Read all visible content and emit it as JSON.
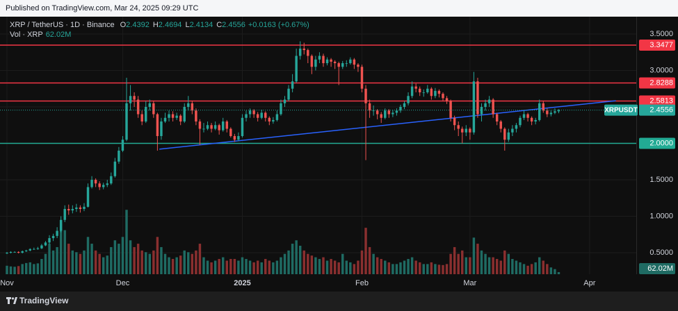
{
  "published": "Published on TradingView.com, Mar 24, 2025 09:29 UTC",
  "footer_brand": "TradingView",
  "chart_data": {
    "type": "candlestick",
    "symbol_title": "XRP / TetherUS · 1D · Binance",
    "ohlc_letters": [
      "O",
      "H",
      "L",
      "C"
    ],
    "change": "+0.0163",
    "change_pct": "(+0.67%)",
    "volume_title": "Vol · XRP",
    "volume_last_label": "62.02M",
    "symbol_label": "XRPUSDT",
    "up_color": "#26a69a",
    "down_color": "#ef5350",
    "volume_up_color": "#1f6b63",
    "volume_down_color": "#8a2f2f",
    "xlim": [
      -1.8,
      163.1
    ],
    "xticks": [
      {
        "value": 0,
        "label": "Nov"
      },
      {
        "value": 30,
        "label": "Dec"
      },
      {
        "value": 61,
        "label": "2025"
      },
      {
        "value": 92,
        "label": "Feb"
      },
      {
        "value": 120,
        "label": "Mar"
      },
      {
        "value": 151,
        "label": "Apr"
      }
    ],
    "ylim": [
      0.205,
      3.738
    ],
    "yticks": [
      {
        "value": 0.5,
        "label": "0.5000"
      },
      {
        "value": 1,
        "label": "1.0000"
      },
      {
        "value": 1.5,
        "label": "1.5000"
      },
      {
        "value": 2,
        "label": "2.0000"
      },
      {
        "value": 2.5,
        "label": "2.5000"
      },
      {
        "value": 3,
        "label": "3.0000"
      },
      {
        "value": 3.5,
        "label": "3.5000"
      }
    ],
    "volume_ylim": [
      0,
      7600
    ],
    "grid": true,
    "levels": [
      {
        "value": 3.3477,
        "color": "#f23645"
      },
      {
        "value": 2.8288,
        "color": "#f23645"
      },
      {
        "value": 2.5813,
        "color": "#f23645"
      },
      {
        "value": 2,
        "label": "2.0000",
        "color": "#22ab94"
      }
    ],
    "trendline": {
      "x": [
        39.5,
        157.8
      ],
      "y": [
        1.92,
        2.585
      ],
      "color": "#2962ff"
    },
    "candles": [
      [
        0.49,
        0.51,
        0.48,
        0.5
      ],
      [
        0.5,
        0.52,
        0.49,
        0.51
      ],
      [
        0.51,
        0.52,
        0.5,
        0.51
      ],
      [
        0.51,
        0.52,
        0.49,
        0.5
      ],
      [
        0.5,
        0.53,
        0.49,
        0.52
      ],
      [
        0.52,
        0.54,
        0.51,
        0.53
      ],
      [
        0.53,
        0.56,
        0.52,
        0.55
      ],
      [
        0.55,
        0.57,
        0.54,
        0.55
      ],
      [
        0.55,
        0.58,
        0.54,
        0.56
      ],
      [
        0.56,
        0.62,
        0.55,
        0.6
      ],
      [
        0.6,
        0.66,
        0.59,
        0.64
      ],
      [
        0.64,
        0.74,
        0.62,
        0.7
      ],
      [
        0.7,
        0.76,
        0.66,
        0.73
      ],
      [
        0.73,
        0.85,
        0.7,
        0.8
      ],
      [
        0.8,
        1.0,
        0.78,
        0.95
      ],
      [
        0.95,
        1.15,
        0.92,
        1.1
      ],
      [
        1.1,
        1.16,
        1.02,
        1.08
      ],
      [
        1.08,
        1.15,
        1.04,
        1.1
      ],
      [
        1.1,
        1.17,
        1.06,
        1.12
      ],
      [
        1.12,
        1.15,
        1.05,
        1.1
      ],
      [
        1.1,
        1.18,
        1.07,
        1.13
      ],
      [
        1.13,
        1.45,
        1.12,
        1.4
      ],
      [
        1.4,
        1.55,
        1.38,
        1.5
      ],
      [
        1.5,
        1.52,
        1.4,
        1.45
      ],
      [
        1.45,
        1.48,
        1.36,
        1.4
      ],
      [
        1.4,
        1.46,
        1.37,
        1.43
      ],
      [
        1.43,
        1.5,
        1.4,
        1.45
      ],
      [
        1.45,
        1.6,
        1.43,
        1.55
      ],
      [
        1.55,
        1.8,
        1.53,
        1.75
      ],
      [
        1.75,
        1.95,
        1.72,
        1.9
      ],
      [
        1.9,
        2.1,
        1.88,
        2.05
      ],
      [
        2.05,
        2.9,
        2.03,
        2.55
      ],
      [
        2.55,
        2.8,
        2.45,
        2.65
      ],
      [
        2.65,
        2.7,
        2.5,
        2.6
      ],
      [
        2.6,
        2.65,
        2.35,
        2.4
      ],
      [
        2.4,
        2.45,
        2.25,
        2.3
      ],
      [
        2.3,
        2.58,
        2.28,
        2.5
      ],
      [
        2.5,
        2.6,
        2.45,
        2.55
      ],
      [
        2.55,
        2.58,
        2.35,
        2.4
      ],
      [
        2.4,
        2.42,
        1.9,
        2.1
      ],
      [
        2.1,
        2.35,
        2.05,
        2.3
      ],
      [
        2.3,
        2.42,
        2.28,
        2.35
      ],
      [
        2.35,
        2.45,
        2.3,
        2.4
      ],
      [
        2.4,
        2.44,
        2.3,
        2.35
      ],
      [
        2.35,
        2.42,
        2.32,
        2.38
      ],
      [
        2.38,
        2.4,
        2.25,
        2.3
      ],
      [
        2.3,
        2.55,
        2.28,
        2.5
      ],
      [
        2.5,
        2.65,
        2.45,
        2.55
      ],
      [
        2.55,
        2.58,
        2.4,
        2.45
      ],
      [
        2.45,
        2.48,
        2.25,
        2.3
      ],
      [
        2.3,
        2.33,
        1.98,
        2.2
      ],
      [
        2.2,
        2.28,
        2.15,
        2.2
      ],
      [
        2.2,
        2.3,
        2.18,
        2.25
      ],
      [
        2.25,
        2.28,
        2.15,
        2.2
      ],
      [
        2.2,
        2.3,
        2.18,
        2.25
      ],
      [
        2.25,
        2.27,
        2.12,
        2.18
      ],
      [
        2.18,
        2.35,
        2.16,
        2.3
      ],
      [
        2.3,
        2.32,
        2.15,
        2.2
      ],
      [
        2.2,
        2.22,
        2.08,
        2.1
      ],
      [
        2.1,
        2.13,
        2.02,
        2.05
      ],
      [
        2.05,
        2.15,
        2.03,
        2.1
      ],
      [
        2.1,
        2.4,
        2.08,
        2.35
      ],
      [
        2.35,
        2.45,
        2.3,
        2.4
      ],
      [
        2.4,
        2.48,
        2.35,
        2.45
      ],
      [
        2.45,
        2.47,
        2.35,
        2.4
      ],
      [
        2.4,
        2.43,
        2.3,
        2.35
      ],
      [
        2.35,
        2.46,
        2.33,
        2.42
      ],
      [
        2.42,
        2.44,
        2.3,
        2.35
      ],
      [
        2.35,
        2.37,
        2.25,
        2.3
      ],
      [
        2.3,
        2.36,
        2.27,
        2.32
      ],
      [
        2.32,
        2.45,
        2.3,
        2.4
      ],
      [
        2.4,
        2.6,
        2.38,
        2.55
      ],
      [
        2.55,
        2.65,
        2.5,
        2.6
      ],
      [
        2.6,
        2.8,
        2.58,
        2.75
      ],
      [
        2.75,
        2.95,
        2.7,
        2.85
      ],
      [
        2.85,
        3.3,
        2.83,
        3.2
      ],
      [
        3.2,
        3.4,
        3.15,
        3.3
      ],
      [
        3.3,
        3.38,
        3.22,
        3.28
      ],
      [
        3.28,
        3.3,
        3.1,
        3.2
      ],
      [
        3.2,
        3.22,
        2.95,
        3.05
      ],
      [
        3.05,
        3.2,
        3.0,
        3.15
      ],
      [
        3.15,
        3.25,
        3.1,
        3.2
      ],
      [
        3.2,
        3.23,
        3.05,
        3.1
      ],
      [
        3.1,
        3.18,
        3.07,
        3.15
      ],
      [
        3.15,
        3.17,
        3.05,
        3.12
      ],
      [
        3.12,
        3.14,
        3.02,
        3.1
      ],
      [
        3.1,
        3.12,
        2.8,
        3.05
      ],
      [
        3.05,
        3.13,
        3.02,
        3.1
      ],
      [
        3.1,
        3.14,
        3.05,
        3.1
      ],
      [
        3.1,
        3.18,
        3.08,
        3.15
      ],
      [
        3.15,
        3.17,
        3.02,
        3.08
      ],
      [
        3.08,
        3.1,
        2.98,
        3.05
      ],
      [
        3.05,
        3.08,
        2.7,
        2.75
      ],
      [
        2.75,
        2.8,
        1.77,
        2.55
      ],
      [
        2.55,
        2.6,
        2.35,
        2.45
      ],
      [
        2.45,
        2.52,
        2.38,
        2.45
      ],
      [
        2.45,
        2.47,
        2.33,
        2.4
      ],
      [
        2.4,
        2.43,
        2.28,
        2.35
      ],
      [
        2.35,
        2.48,
        2.33,
        2.45
      ],
      [
        2.45,
        2.47,
        2.35,
        2.4
      ],
      [
        2.4,
        2.46,
        2.36,
        2.42
      ],
      [
        2.42,
        2.48,
        2.38,
        2.45
      ],
      [
        2.45,
        2.53,
        2.42,
        2.5
      ],
      [
        2.5,
        2.58,
        2.47,
        2.55
      ],
      [
        2.55,
        2.7,
        2.52,
        2.65
      ],
      [
        2.65,
        2.85,
        2.62,
        2.78
      ],
      [
        2.78,
        2.82,
        2.7,
        2.75
      ],
      [
        2.75,
        2.78,
        2.65,
        2.7
      ],
      [
        2.7,
        2.74,
        2.64,
        2.7
      ],
      [
        2.7,
        2.8,
        2.68,
        2.75
      ],
      [
        2.75,
        2.77,
        2.6,
        2.65
      ],
      [
        2.65,
        2.76,
        2.62,
        2.72
      ],
      [
        2.72,
        2.74,
        2.63,
        2.68
      ],
      [
        2.68,
        2.7,
        2.58,
        2.62
      ],
      [
        2.62,
        2.65,
        2.54,
        2.58
      ],
      [
        2.58,
        2.6,
        2.3,
        2.35
      ],
      [
        2.35,
        2.38,
        2.18,
        2.25
      ],
      [
        2.25,
        2.3,
        2.1,
        2.2
      ],
      [
        2.2,
        2.23,
        2.0,
        2.15
      ],
      [
        2.15,
        2.25,
        2.1,
        2.2
      ],
      [
        2.2,
        2.22,
        2.05,
        2.15
      ],
      [
        2.15,
        2.98,
        2.12,
        2.85
      ],
      [
        2.85,
        2.9,
        2.35,
        2.4
      ],
      [
        2.4,
        2.55,
        2.3,
        2.5
      ],
      [
        2.5,
        2.6,
        2.45,
        2.55
      ],
      [
        2.55,
        2.65,
        2.5,
        2.6
      ],
      [
        2.6,
        2.62,
        2.35,
        2.4
      ],
      [
        2.4,
        2.42,
        2.25,
        2.3
      ],
      [
        2.3,
        2.32,
        2.15,
        2.2
      ],
      [
        2.2,
        2.22,
        1.9,
        2.05
      ],
      [
        2.05,
        2.2,
        2.02,
        2.15
      ],
      [
        2.15,
        2.25,
        2.1,
        2.2
      ],
      [
        2.2,
        2.28,
        2.15,
        2.25
      ],
      [
        2.25,
        2.38,
        2.22,
        2.35
      ],
      [
        2.35,
        2.45,
        2.32,
        2.4
      ],
      [
        2.4,
        2.42,
        2.3,
        2.35
      ],
      [
        2.35,
        2.37,
        2.25,
        2.3
      ],
      [
        2.3,
        2.35,
        2.26,
        2.32
      ],
      [
        2.32,
        2.6,
        2.3,
        2.55
      ],
      [
        2.55,
        2.58,
        2.42,
        2.45
      ],
      [
        2.45,
        2.48,
        2.36,
        2.4
      ],
      [
        2.4,
        2.45,
        2.37,
        2.42
      ],
      [
        2.42,
        2.48,
        2.4,
        2.44
      ],
      [
        2.4392,
        2.4694,
        2.4134,
        2.4556
      ]
    ],
    "volumes": [
      250,
      230,
      220,
      240,
      300,
      330,
      350,
      300,
      320,
      450,
      600,
      900,
      700,
      800,
      1500,
      1300,
      900,
      700,
      650,
      600,
      700,
      1100,
      900,
      700,
      600,
      500,
      550,
      800,
      1000,
      900,
      1100,
      1900,
      1000,
      800,
      900,
      700,
      650,
      600,
      700,
      1100,
      800,
      600,
      500,
      450,
      500,
      550,
      700,
      650,
      600,
      700,
      900,
      500,
      400,
      350,
      400,
      450,
      500,
      400,
      450,
      450,
      400,
      500,
      450,
      400,
      350,
      400,
      350,
      450,
      400,
      350,
      400,
      500,
      600,
      700,
      900,
      1000,
      840,
      700,
      600,
      550,
      500,
      450,
      500,
      400,
      450,
      400,
      350,
      600,
      400,
      350,
      300,
      400,
      700,
      1370,
      800,
      600,
      500,
      450,
      400,
      350,
      300,
      300,
      350,
      400,
      450,
      500,
      400,
      350,
      300,
      300,
      350,
      300,
      280,
      270,
      300,
      600,
      800,
      600,
      700,
      500,
      500,
      1080,
      900,
      700,
      600,
      500,
      500,
      450,
      400,
      700,
      600,
      450,
      400,
      350,
      300,
      250,
      300,
      350,
      500,
      400,
      300,
      200,
      150,
      62.02
    ]
  }
}
